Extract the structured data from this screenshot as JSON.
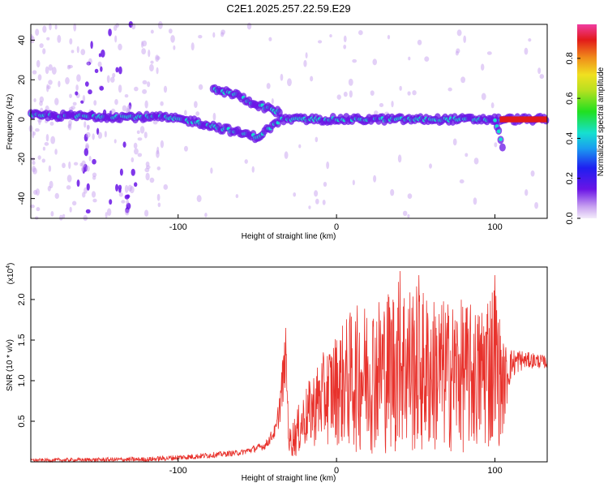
{
  "title": "C2E1.2025.257.22.59.E29",
  "colors": {
    "snr_line": "#e8322c",
    "axis": "#000000",
    "track_low": "#6a14e6",
    "track_mid": "#16e0d0",
    "track_high": "#e21a1a"
  },
  "chart_data": [
    {
      "type": "heatmap",
      "title": "C2E1.2025.257.22.59.E29",
      "xlabel": "Height of straight line (km)",
      "ylabel": "Frequency (Hz)",
      "xlim": [
        -193,
        133
      ],
      "ylim": [
        -50,
        48
      ],
      "xticks": [
        -100,
        0,
        100
      ],
      "yticks": [
        -40,
        -20,
        0,
        20,
        40
      ],
      "colorbar": {
        "label": "Normalized spectral amplitude",
        "range": [
          0,
          0.97
        ],
        "ticks": [
          0.0,
          0.2,
          0.4,
          0.6,
          0.8
        ]
      },
      "features": [
        {
          "name": "main-track",
          "x": [
            -193,
            -110,
            -90,
            -70,
            -50,
            -35,
            -20,
            0,
            50,
            100,
            133
          ],
          "freq_hz": [
            2,
            1,
            -1,
            -5,
            -9,
            0,
            0,
            0,
            0,
            0,
            0
          ]
        },
        {
          "name": "upper-branch",
          "x": [
            -78,
            -65,
            -55,
            -45,
            -35
          ],
          "freq_hz": [
            15,
            13,
            9,
            6,
            3
          ]
        },
        {
          "name": "dip-105",
          "x": [
            100,
            103,
            105
          ],
          "freq_hz": [
            0,
            -8,
            -14
          ]
        }
      ]
    },
    {
      "type": "line",
      "xlabel": "Height of straight line (km)",
      "ylabel": "SNR (10 * v/v)",
      "y_scale_label": "(x10",
      "y_scale_exp": "4",
      "multiplier": 10000,
      "xlim": [
        -193,
        133
      ],
      "ylim": [
        0,
        2.4
      ],
      "xticks": [
        -100,
        0,
        100
      ],
      "yticks": [
        0.5,
        1.0,
        1.5,
        2.0
      ],
      "yticklabels": [
        "0.5",
        "1.0",
        "1.5",
        "2.0"
      ],
      "envelope": {
        "x": [
          -193,
          -120,
          -90,
          -60,
          -45,
          -38,
          -34,
          -32,
          -30,
          -25,
          -20,
          -10,
          0,
          10,
          20,
          30,
          40,
          50,
          60,
          70,
          80,
          90,
          95,
          100,
          105,
          110,
          115,
          120,
          125,
          133
        ],
        "low": [
          0.0,
          0.0,
          0.03,
          0.08,
          0.15,
          0.3,
          0.6,
          1.0,
          0.05,
          0.05,
          0.15,
          0.2,
          0.2,
          0.1,
          0.1,
          0.1,
          0.05,
          0.05,
          0.05,
          0.1,
          0.1,
          0.1,
          0.1,
          0.05,
          0.3,
          1.0,
          1.1,
          1.15,
          1.15,
          1.15
        ],
        "high": [
          0.04,
          0.06,
          0.1,
          0.15,
          0.25,
          0.5,
          1.3,
          1.65,
          0.4,
          0.65,
          0.9,
          1.3,
          1.6,
          1.9,
          2.0,
          2.1,
          2.3,
          2.2,
          2.05,
          2.0,
          2.0,
          1.9,
          2.2,
          2.3,
          1.5,
          1.4,
          1.4,
          1.35,
          1.35,
          1.3
        ]
      },
      "peaks": [
        {
          "x": -32,
          "y": 1.65
        },
        {
          "x": 40,
          "y": 2.35
        },
        {
          "x": 52,
          "y": 2.3
        },
        {
          "x": 100,
          "y": 2.3
        }
      ]
    }
  ]
}
